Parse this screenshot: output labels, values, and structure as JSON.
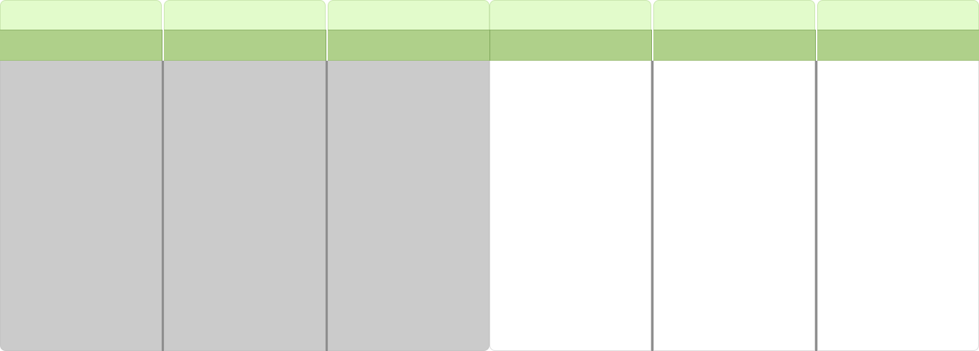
{
  "columns": [
    {
      "title": "",
      "subtitle": "",
      "shaded": true
    },
    {
      "title": "",
      "subtitle": "",
      "shaded": true
    },
    {
      "title": "",
      "subtitle": "",
      "shaded": true
    },
    {
      "title": "",
      "subtitle": "",
      "shaded": false
    },
    {
      "title": "",
      "subtitle": "",
      "shaded": false
    },
    {
      "title": "",
      "subtitle": "",
      "shaded": false
    }
  ],
  "colors": {
    "tab": "#e2fbcb",
    "bar": "#afd08a",
    "shaded_body": "#cbcbcb",
    "plain_body": "#ffffff",
    "splitter": "#8e8e8e"
  }
}
